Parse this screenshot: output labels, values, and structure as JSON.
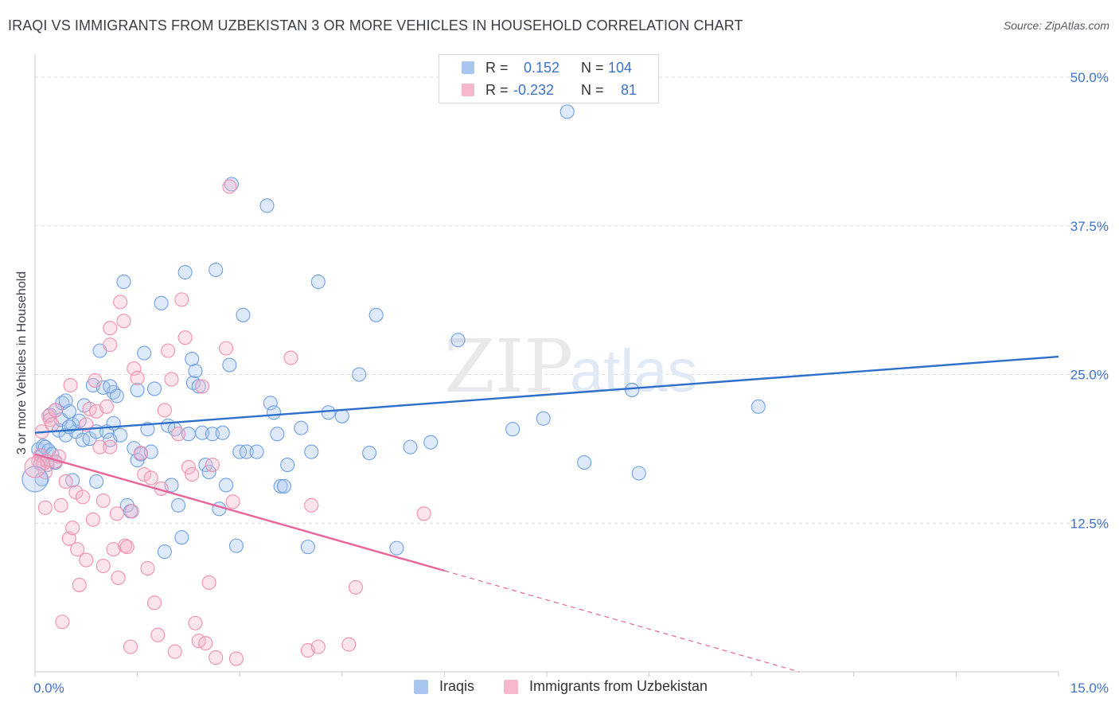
{
  "title": "IRAQI VS IMMIGRANTS FROM UZBEKISTAN 3 OR MORE VEHICLES IN HOUSEHOLD CORRELATION CHART",
  "source": "Source: ZipAtlas.com",
  "watermark": {
    "zip": "ZIP",
    "atlas": "atlas"
  },
  "legend": {
    "rows": [
      {
        "r_label": "R =",
        "r_value": "0.152",
        "n_label": "N =",
        "n_value": "104",
        "color": "#a9c6f0"
      },
      {
        "r_label": "R =",
        "r_value": "-0.232",
        "n_label": "N =",
        "n_value": "81",
        "color": "#f5b8cb"
      }
    ]
  },
  "bottom_legend": [
    {
      "label": "Iraqis",
      "color": "#a9c6f0"
    },
    {
      "label": "Immigrants from Uzbekistan",
      "color": "#f5b8cb"
    }
  ],
  "chart_data": {
    "type": "scatter",
    "title": "IRAQI VS IMMIGRANTS FROM UZBEKISTAN 3 OR MORE VEHICLES IN HOUSEHOLD CORRELATION CHART",
    "xlabel": "",
    "ylabel": "3 or more Vehicles in Household",
    "xlim": [
      0,
      15
    ],
    "ylim": [
      0,
      50
    ],
    "x_tick_labels": [
      {
        "value": 0,
        "label": "0.0%"
      },
      {
        "value": 15,
        "label": "15.0%"
      }
    ],
    "y_tick_labels": [
      {
        "value": 12.5,
        "label": "12.5%"
      },
      {
        "value": 25,
        "label": "25.0%"
      },
      {
        "value": 37.5,
        "label": "37.5%"
      },
      {
        "value": 50,
        "label": "50.0%"
      }
    ],
    "series": [
      {
        "name": "Iraqis",
        "color": "#6fa1e6",
        "trend": {
          "x": [
            0,
            15
          ],
          "y": [
            20.1,
            26.5
          ],
          "color": "#2f6fcc"
        },
        "points": [
          [
            0.05,
            18.7
          ],
          [
            0.08,
            17.5
          ],
          [
            0.1,
            18.2
          ],
          [
            0.12,
            19.0
          ],
          [
            0.15,
            18.9
          ],
          [
            0.18,
            17.4
          ],
          [
            0.2,
            18.6
          ],
          [
            0.22,
            21.6
          ],
          [
            0.25,
            18.3
          ],
          [
            0.3,
            22.0
          ],
          [
            0.35,
            20.3
          ],
          [
            0.38,
            21.2
          ],
          [
            0.4,
            22.6
          ],
          [
            0.45,
            19.9
          ],
          [
            0.5,
            21.9
          ],
          [
            0.55,
            20.8
          ],
          [
            0.55,
            16.1
          ],
          [
            0.6,
            20.2
          ],
          [
            0.65,
            21.1
          ],
          [
            0.7,
            19.5
          ],
          [
            0.72,
            22.4
          ],
          [
            0.8,
            19.6
          ],
          [
            0.85,
            24.1
          ],
          [
            0.9,
            20.2
          ],
          [
            0.95,
            27.0
          ],
          [
            1.0,
            23.9
          ],
          [
            1.05,
            20.2
          ],
          [
            1.1,
            19.5
          ],
          [
            1.15,
            23.5
          ],
          [
            1.15,
            20.9
          ],
          [
            1.2,
            23.2
          ],
          [
            1.25,
            19.9
          ],
          [
            1.3,
            32.8
          ],
          [
            1.35,
            14.0
          ],
          [
            1.4,
            13.5
          ],
          [
            1.45,
            18.8
          ],
          [
            1.5,
            17.8
          ],
          [
            1.5,
            23.7
          ],
          [
            1.55,
            18.3
          ],
          [
            1.6,
            26.8
          ],
          [
            1.65,
            20.4
          ],
          [
            1.7,
            18.5
          ],
          [
            1.75,
            23.8
          ],
          [
            1.85,
            31.0
          ],
          [
            1.9,
            10.1
          ],
          [
            1.95,
            20.7
          ],
          [
            2.0,
            15.7
          ],
          [
            2.05,
            20.4
          ],
          [
            2.1,
            14.0
          ],
          [
            2.15,
            11.3
          ],
          [
            2.2,
            33.6
          ],
          [
            2.25,
            20.0
          ],
          [
            2.3,
            26.3
          ],
          [
            2.32,
            24.3
          ],
          [
            2.35,
            25.3
          ],
          [
            2.4,
            24.0
          ],
          [
            2.45,
            20.1
          ],
          [
            2.5,
            17.4
          ],
          [
            2.55,
            16.8
          ],
          [
            2.6,
            20.0
          ],
          [
            2.65,
            33.8
          ],
          [
            2.7,
            13.7
          ],
          [
            2.75,
            20.1
          ],
          [
            2.8,
            15.7
          ],
          [
            2.85,
            25.8
          ],
          [
            2.95,
            10.6
          ],
          [
            2.88,
            41.0
          ],
          [
            3.0,
            18.5
          ],
          [
            3.05,
            30.0
          ],
          [
            3.1,
            18.5
          ],
          [
            3.25,
            18.5
          ],
          [
            3.4,
            39.2
          ],
          [
            3.45,
            22.6
          ],
          [
            3.5,
            21.8
          ],
          [
            3.55,
            20.0
          ],
          [
            3.6,
            15.6
          ],
          [
            3.65,
            15.6
          ],
          [
            3.7,
            17.4
          ],
          [
            3.9,
            20.5
          ],
          [
            4.0,
            10.5
          ],
          [
            4.05,
            18.5
          ],
          [
            4.15,
            32.8
          ],
          [
            4.3,
            21.8
          ],
          [
            4.5,
            21.5
          ],
          [
            4.75,
            25.0
          ],
          [
            4.9,
            18.4
          ],
          [
            5.0,
            30.0
          ],
          [
            5.3,
            10.4
          ],
          [
            5.5,
            18.9
          ],
          [
            5.8,
            19.3
          ],
          [
            6.2,
            27.9
          ],
          [
            7.0,
            20.4
          ],
          [
            7.45,
            21.3
          ],
          [
            7.8,
            47.1
          ],
          [
            8.05,
            17.6
          ],
          [
            8.75,
            23.7
          ],
          [
            8.85,
            16.7
          ],
          [
            10.6,
            22.3
          ],
          [
            0.1,
            16.2
          ],
          [
            0.3,
            17.6
          ],
          [
            0.45,
            22.8
          ],
          [
            0.5,
            20.6
          ],
          [
            0.9,
            16.0
          ],
          [
            1.1,
            24.0
          ]
        ]
      },
      {
        "name": "Immigrants from Uzbekistan",
        "color": "#f090ad",
        "trend": {
          "x": [
            0,
            6.0
          ],
          "y": [
            18.3,
            8.5
          ],
          "color": "#e8649a",
          "dashed_to": {
            "x": 11.2,
            "y": 0
          }
        },
        "points": [
          [
            0.05,
            17.7
          ],
          [
            0.08,
            18.2
          ],
          [
            0.1,
            20.2
          ],
          [
            0.12,
            17.5
          ],
          [
            0.15,
            13.8
          ],
          [
            0.18,
            17.7
          ],
          [
            0.2,
            21.5
          ],
          [
            0.22,
            21.2
          ],
          [
            0.25,
            20.8
          ],
          [
            0.3,
            17.7
          ],
          [
            0.35,
            18.1
          ],
          [
            0.38,
            14.0
          ],
          [
            0.4,
            4.2
          ],
          [
            0.45,
            16.0
          ],
          [
            0.5,
            11.2
          ],
          [
            0.52,
            24.1
          ],
          [
            0.55,
            12.1
          ],
          [
            0.6,
            15.1
          ],
          [
            0.62,
            10.3
          ],
          [
            0.65,
            7.3
          ],
          [
            0.7,
            14.7
          ],
          [
            0.75,
            20.8
          ],
          [
            0.75,
            9.4
          ],
          [
            0.8,
            22.1
          ],
          [
            0.85,
            12.8
          ],
          [
            0.88,
            24.5
          ],
          [
            0.9,
            21.9
          ],
          [
            0.95,
            18.9
          ],
          [
            1.0,
            14.4
          ],
          [
            1.0,
            8.9
          ],
          [
            1.05,
            22.3
          ],
          [
            1.1,
            27.5
          ],
          [
            1.1,
            28.9
          ],
          [
            1.1,
            18.9
          ],
          [
            1.15,
            10.3
          ],
          [
            1.2,
            13.3
          ],
          [
            1.22,
            7.9
          ],
          [
            1.25,
            31.1
          ],
          [
            1.3,
            29.5
          ],
          [
            1.32,
            10.6
          ],
          [
            1.35,
            10.5
          ],
          [
            1.4,
            2.1
          ],
          [
            1.42,
            13.5
          ],
          [
            1.45,
            25.5
          ],
          [
            1.5,
            24.7
          ],
          [
            1.55,
            18.4
          ],
          [
            1.6,
            16.6
          ],
          [
            1.65,
            8.7
          ],
          [
            1.7,
            16.3
          ],
          [
            1.75,
            5.8
          ],
          [
            1.8,
            3.1
          ],
          [
            1.85,
            15.4
          ],
          [
            1.9,
            22.0
          ],
          [
            1.95,
            27.0
          ],
          [
            2.0,
            24.6
          ],
          [
            2.05,
            1.7
          ],
          [
            2.1,
            20.0
          ],
          [
            2.15,
            31.3
          ],
          [
            2.2,
            28.1
          ],
          [
            2.25,
            17.2
          ],
          [
            2.3,
            16.6
          ],
          [
            2.35,
            4.1
          ],
          [
            2.4,
            2.6
          ],
          [
            2.45,
            24.0
          ],
          [
            2.5,
            2.4
          ],
          [
            2.55,
            7.5
          ],
          [
            2.6,
            17.4
          ],
          [
            2.65,
            1.2
          ],
          [
            2.8,
            27.2
          ],
          [
            2.9,
            14.3
          ],
          [
            2.95,
            1.1
          ],
          [
            2.85,
            40.8
          ],
          [
            3.75,
            26.4
          ],
          [
            4.0,
            1.8
          ],
          [
            4.05,
            14.0
          ],
          [
            4.15,
            2.1
          ],
          [
            4.7,
            7.1
          ],
          [
            4.6,
            2.3
          ],
          [
            5.7,
            13.3
          ],
          [
            0.3,
            22.0
          ],
          [
            0.15,
            16.8
          ]
        ]
      }
    ]
  }
}
